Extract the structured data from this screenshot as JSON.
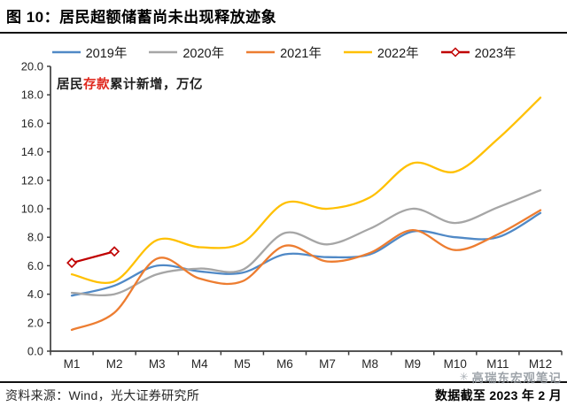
{
  "figure": {
    "title": "图 10：居民超额储蓄尚未出现释放迹象"
  },
  "annotation": {
    "prefix": "居民",
    "highlight": "存款",
    "suffix": "累计新增，万亿",
    "highlight_color": "#e0281e"
  },
  "footer": {
    "source": "资料来源：Wind，光大证券研究所",
    "cutoff": "数据截至 2023 年 2 月"
  },
  "watermark": {
    "icon": "flower-logo-icon",
    "text": "高瑞东宏观笔记"
  },
  "chart_data": {
    "type": "line",
    "title": "图 10：居民超额储蓄尚未出现释放迹象",
    "subtitle": "居民存款累计新增，万亿",
    "categories": [
      "M1",
      "M2",
      "M3",
      "M4",
      "M5",
      "M6",
      "M7",
      "M8",
      "M9",
      "M10",
      "M11",
      "M12"
    ],
    "y_tick_labels": [
      "20.0",
      "18.0",
      "16.0",
      "14.0",
      "12.0",
      "10.0",
      "8.0",
      "6.0",
      "4.0",
      "2.0",
      "0.0"
    ],
    "ylim": [
      0,
      20
    ],
    "grid": false,
    "legend_position": "top",
    "axis_color": "#3f3f3f",
    "tick_text_color": "#262626",
    "series": [
      {
        "name": "2019年",
        "color": "#5089c6",
        "marker": "none",
        "smooth": true,
        "values": [
          3.9,
          4.6,
          6.0,
          5.6,
          5.5,
          6.8,
          6.6,
          6.8,
          8.4,
          8.0,
          8.0,
          9.7
        ]
      },
      {
        "name": "2020年",
        "color": "#a6a6a6",
        "marker": "none",
        "smooth": true,
        "values": [
          4.1,
          4.0,
          5.4,
          5.8,
          5.7,
          8.3,
          7.5,
          8.6,
          10.0,
          9.0,
          10.1,
          11.3
        ]
      },
      {
        "name": "2021年",
        "color": "#ed7d31",
        "marker": "none",
        "smooth": true,
        "values": [
          1.5,
          2.7,
          6.5,
          5.1,
          4.9,
          7.4,
          6.3,
          6.9,
          8.5,
          7.1,
          8.2,
          9.9
        ]
      },
      {
        "name": "2022年",
        "color": "#ffc000",
        "marker": "none",
        "smooth": true,
        "values": [
          5.4,
          4.9,
          7.8,
          7.3,
          7.6,
          10.4,
          10.0,
          10.8,
          13.2,
          12.6,
          14.9,
          17.8
        ]
      },
      {
        "name": "2023年",
        "color": "#c00000",
        "marker": "diamond",
        "smooth": false,
        "values": [
          6.2,
          7.0
        ]
      }
    ]
  }
}
